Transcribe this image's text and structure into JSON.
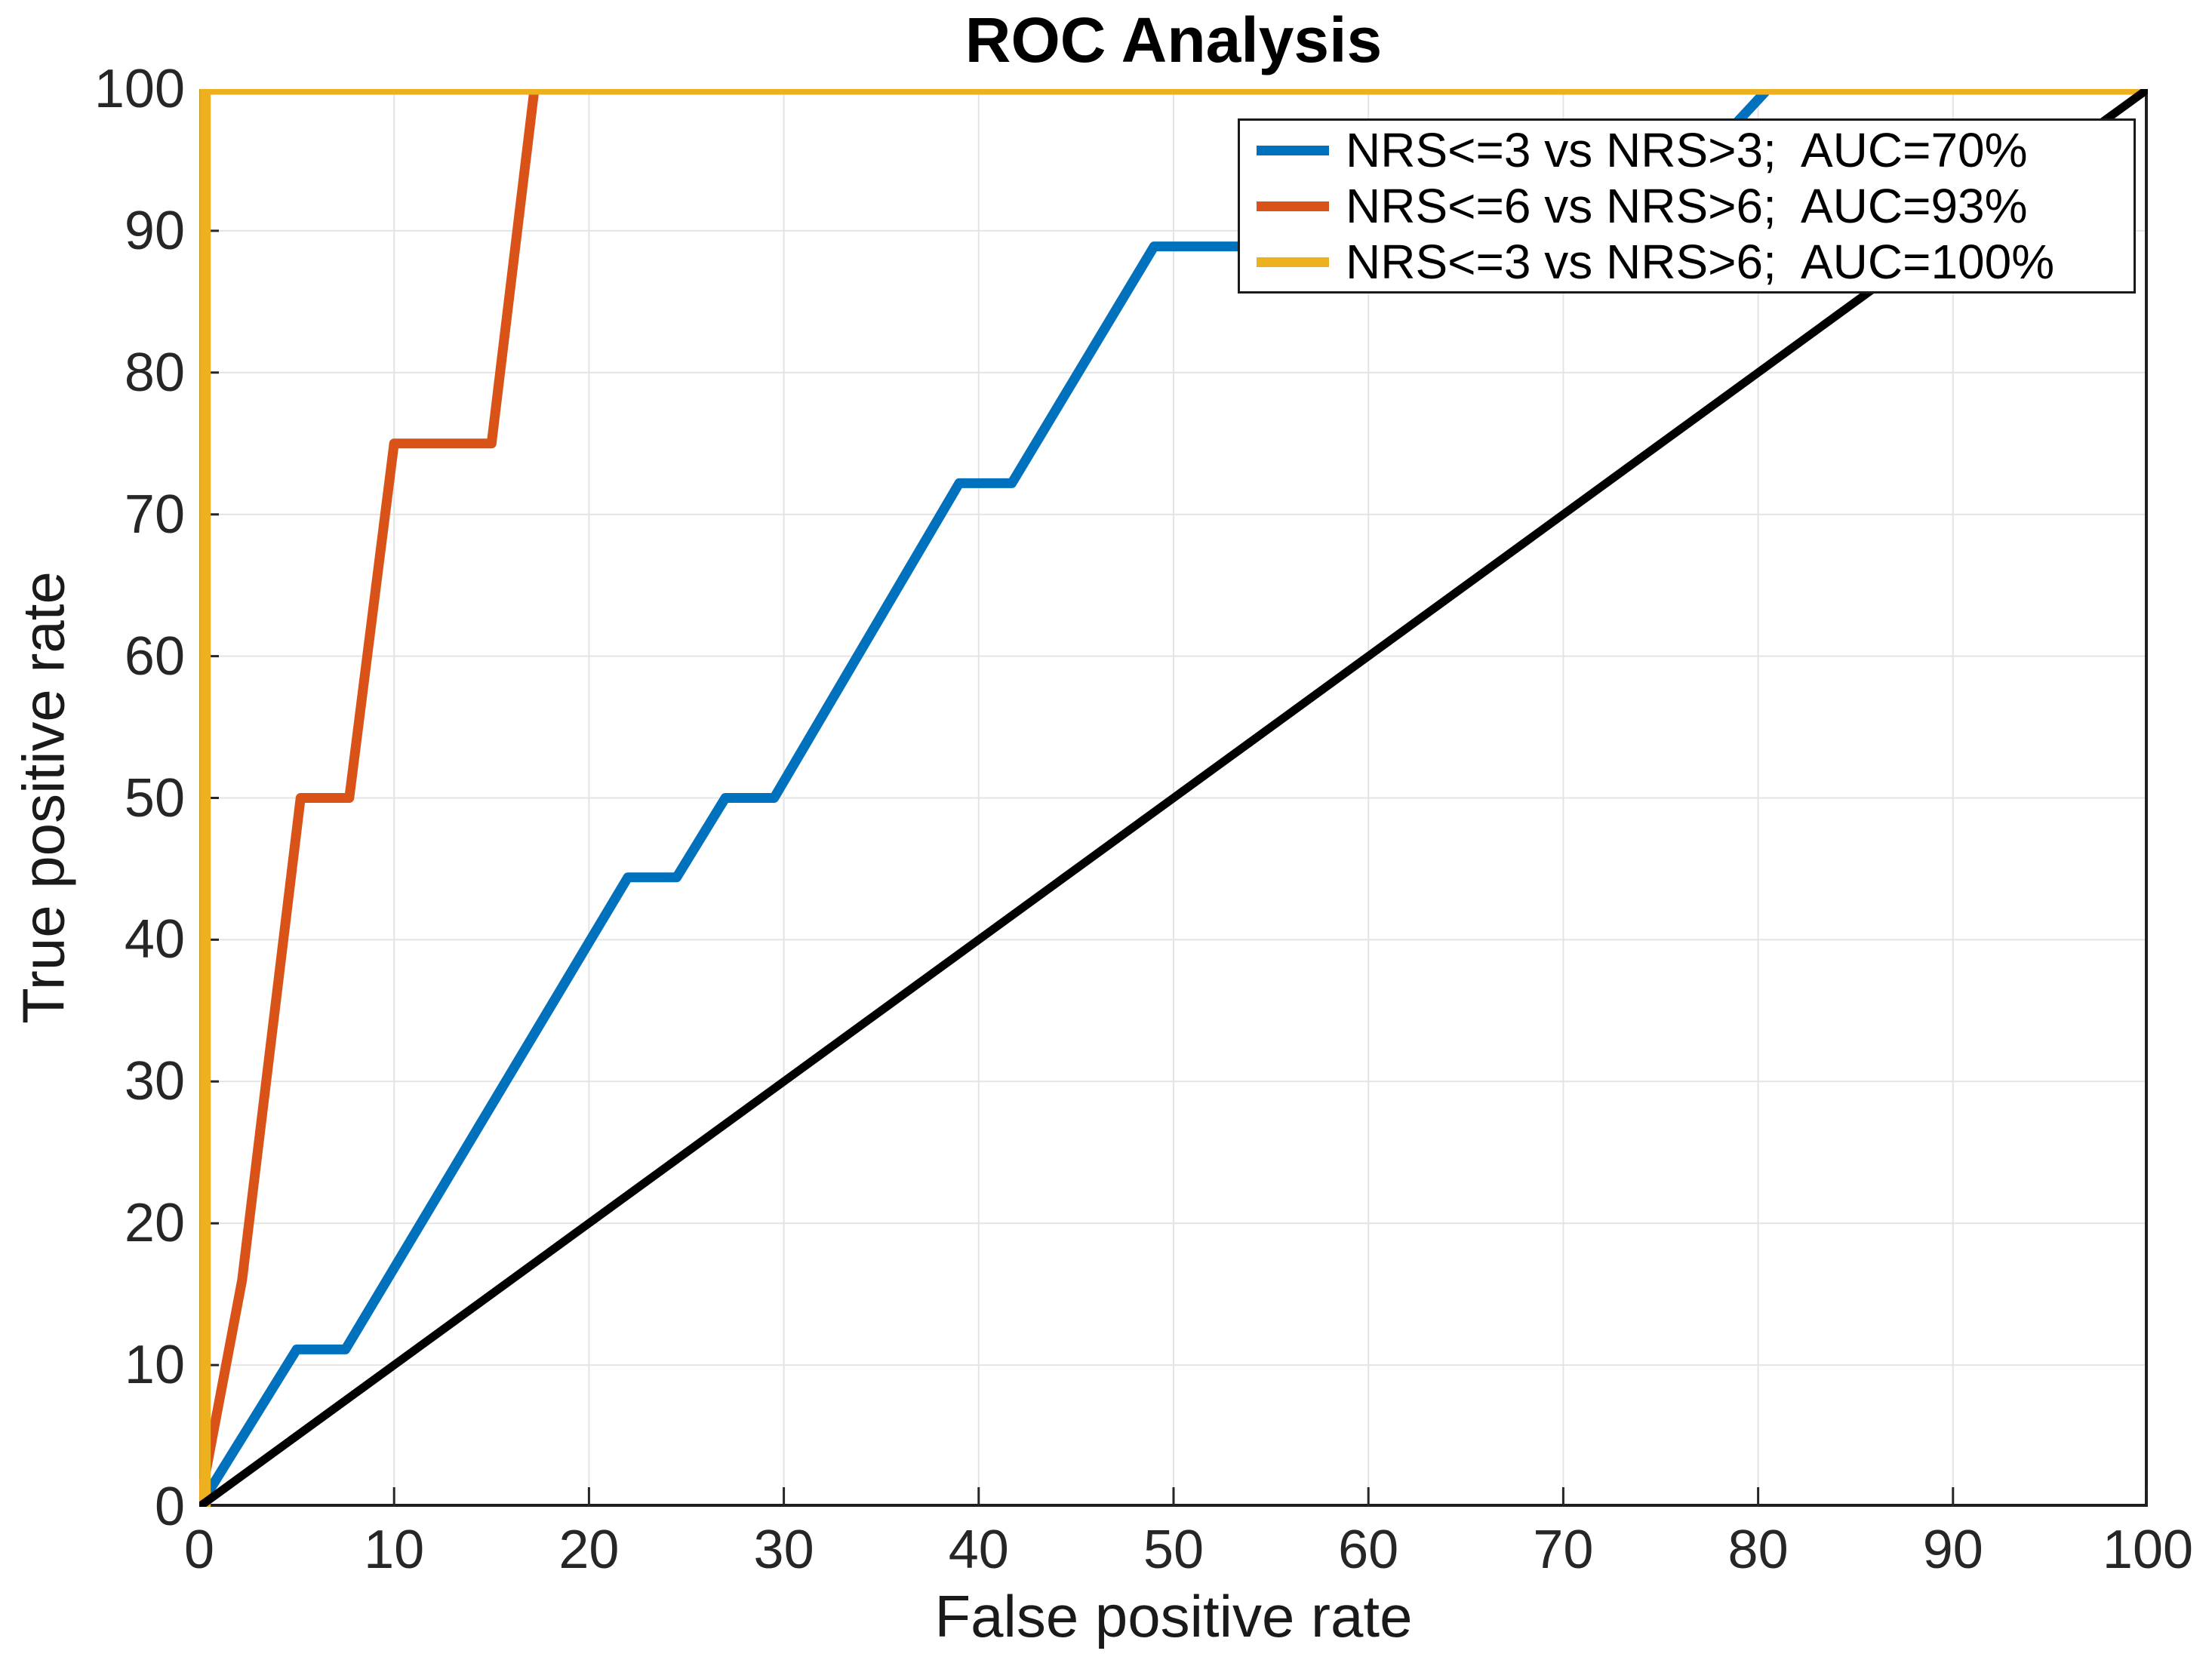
{
  "chart_data": {
    "type": "line",
    "title": "ROC Analysis",
    "xlabel": "False positive rate",
    "ylabel": "True positive rate",
    "xlim": [
      0,
      100
    ],
    "ylim": [
      0,
      100
    ],
    "x_ticks": [
      0,
      10,
      20,
      30,
      40,
      50,
      60,
      70,
      80,
      90,
      100
    ],
    "y_ticks": [
      0,
      10,
      20,
      30,
      40,
      50,
      60,
      70,
      80,
      90,
      100
    ],
    "grid": true,
    "legend_position": "top-right",
    "series": [
      {
        "name": "nrs3-vs-nrs3",
        "label": "NRS<=3 vs NRS>3;  AUC=70%",
        "auc_percent": 70,
        "color": "#0072BD",
        "points": [
          [
            0,
            0
          ],
          [
            5,
            11.1
          ],
          [
            7.5,
            11.1
          ],
          [
            22,
            44.4
          ],
          [
            24.5,
            44.4
          ],
          [
            27,
            50
          ],
          [
            29.5,
            50
          ],
          [
            39,
            72.2
          ],
          [
            41.7,
            72.2
          ],
          [
            49,
            88.9
          ],
          [
            73,
            88.9
          ],
          [
            80.5,
            100
          ],
          [
            100,
            100
          ]
        ]
      },
      {
        "name": "nrs6-vs-nrs6",
        "label": "NRS<=6 vs NRS>6;  AUC=93%",
        "auc_percent": 93,
        "color": "#D95319",
        "points": [
          [
            0,
            0
          ],
          [
            2.2,
            16
          ],
          [
            5.2,
            50
          ],
          [
            7.7,
            50
          ],
          [
            10,
            75
          ],
          [
            15,
            75
          ],
          [
            17.2,
            100
          ],
          [
            100,
            100
          ]
        ]
      },
      {
        "name": "nrs3-vs-nrs6",
        "label": "NRS<=3 vs NRS>6;  AUC=100%",
        "auc_percent": 100,
        "color": "#EDB120",
        "points": [
          [
            0.3,
            0
          ],
          [
            0.3,
            100
          ],
          [
            100,
            100
          ]
        ]
      }
    ],
    "reference_line": {
      "name": "chance-diagonal",
      "color": "#000000",
      "points": [
        [
          0,
          0
        ],
        [
          100,
          100
        ]
      ]
    }
  },
  "style_colors": {
    "grid": "#e4e4e4",
    "frame": "#1f1f1f",
    "tick": "#262626",
    "background": "#ffffff"
  }
}
